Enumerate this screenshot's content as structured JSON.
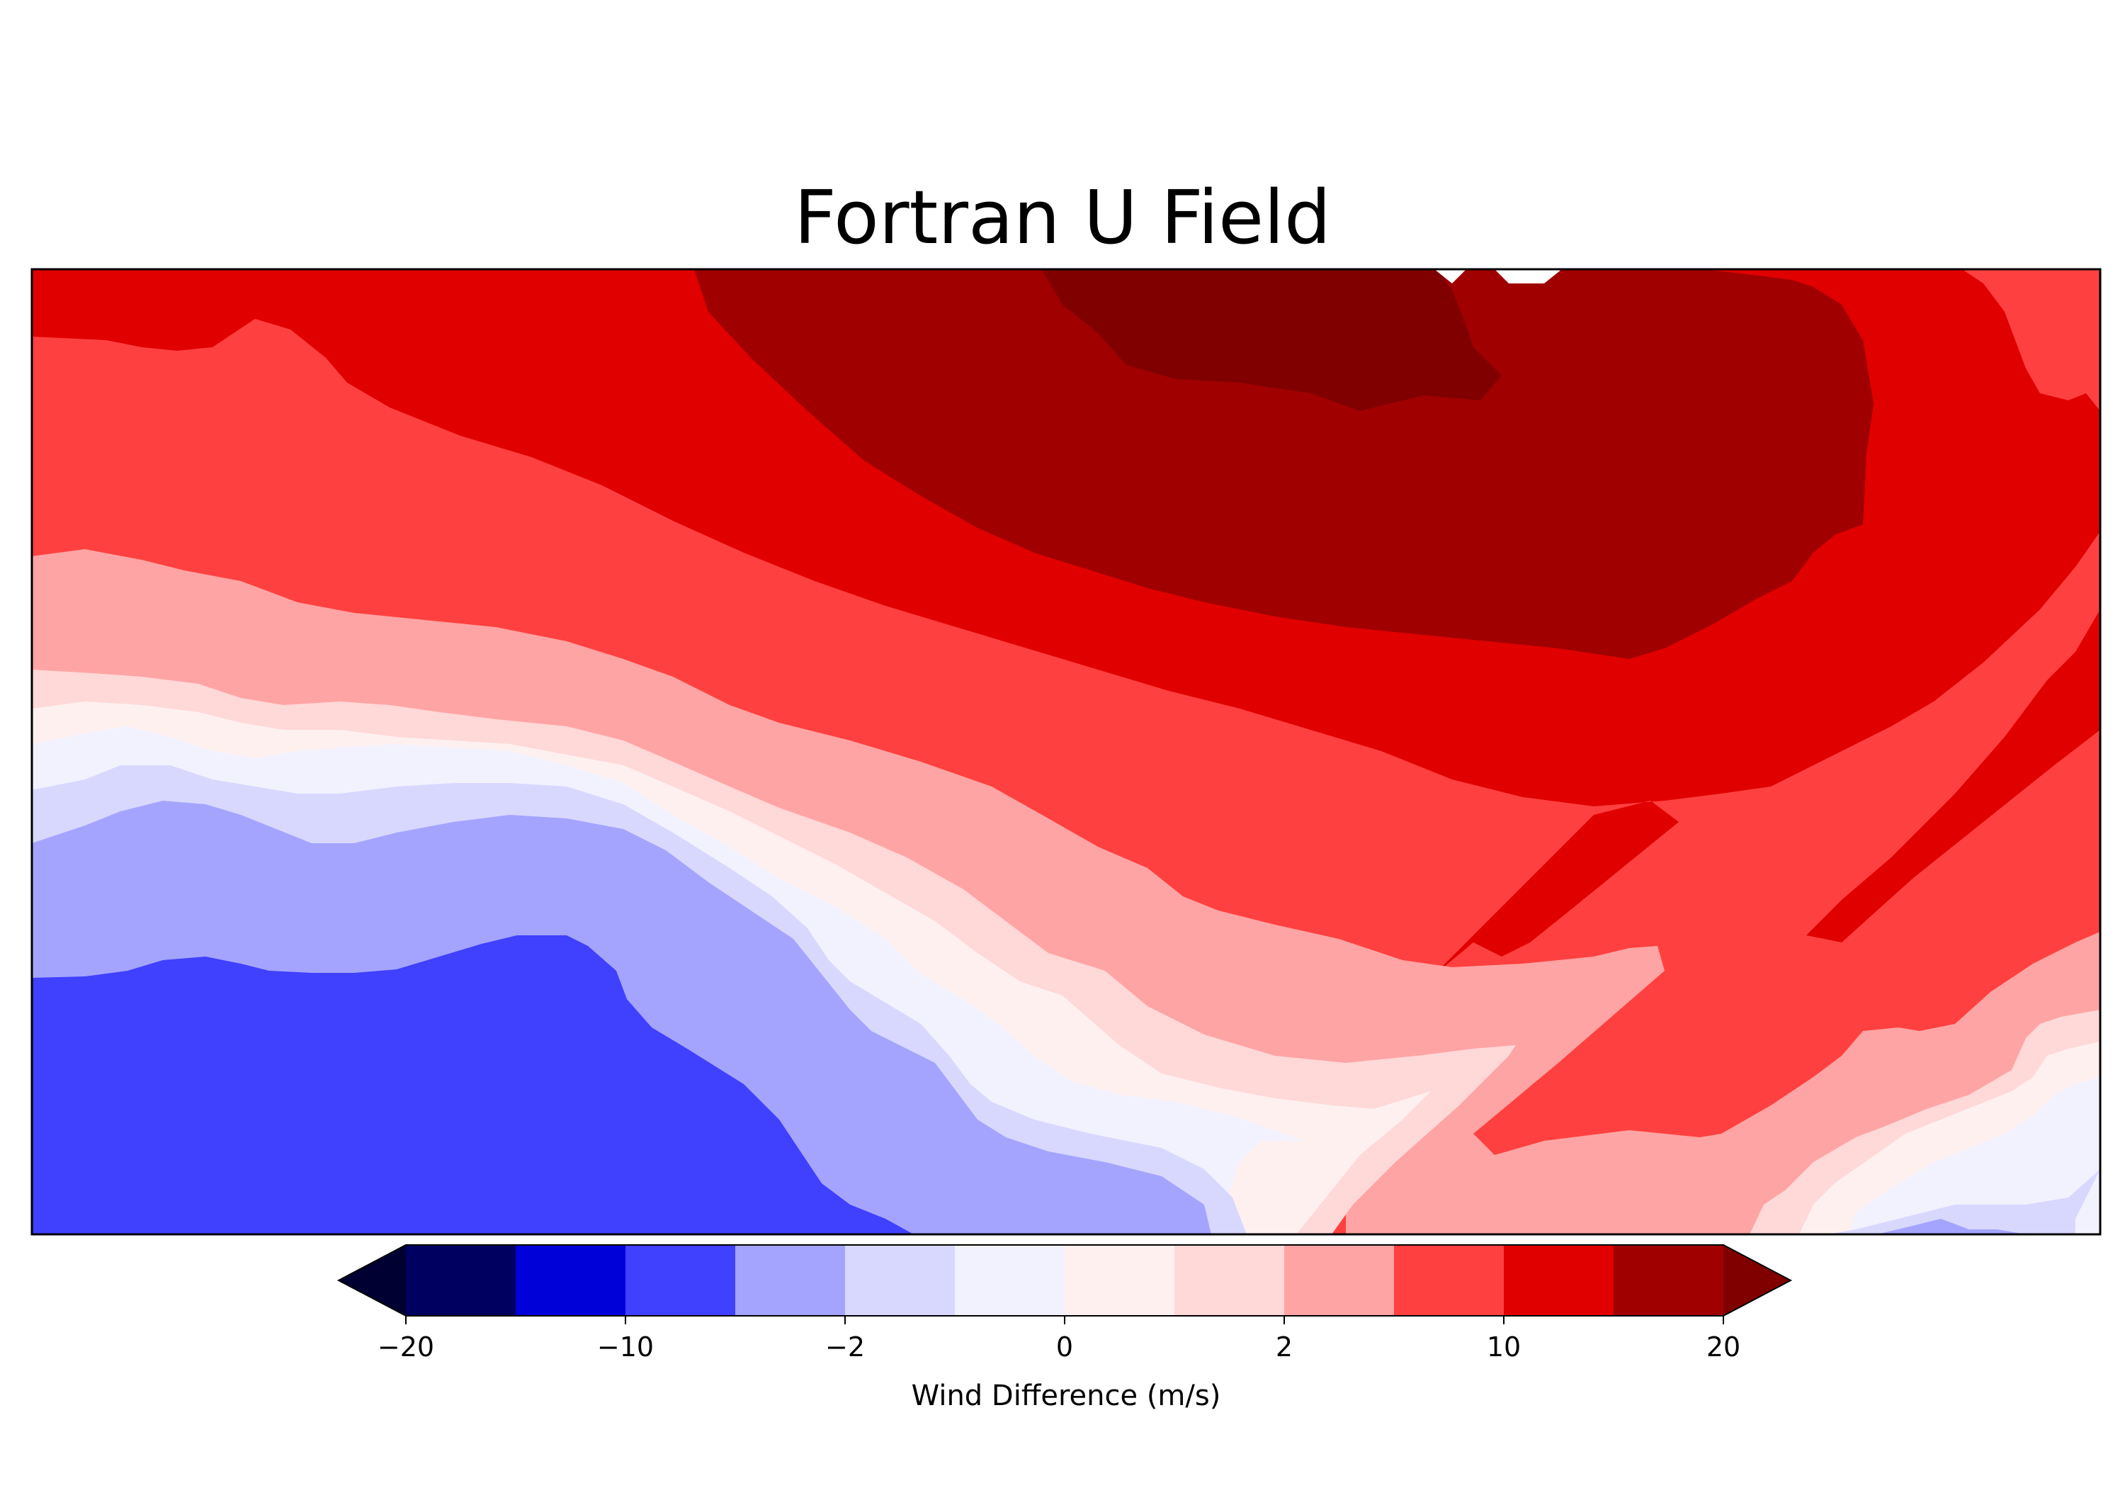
{
  "chart_data": {
    "type": "heatmap",
    "subtype": "filled-contour",
    "title": "Fortran U Field",
    "xlabel": "",
    "ylabel": "",
    "axis_ticks_shown": false,
    "colorbar": {
      "label": "Wind Difference (m/s)",
      "orientation": "horizontal",
      "placement": "bottom",
      "extend": "both",
      "levels": [
        -20,
        -15,
        -10,
        -5,
        -2,
        -1,
        0,
        1,
        2,
        5,
        10,
        15,
        20
      ],
      "tick_labels": [
        "−20",
        "−10",
        "−2",
        "0",
        "2",
        "10",
        "20"
      ],
      "tick_values": [
        -20,
        -10,
        -2,
        0,
        2,
        10,
        20
      ],
      "colors": [
        "#000060",
        "#0000d8",
        "#4040ff",
        "#a4a4ff",
        "#d8d8ff",
        "#f2f2ff",
        "#fff0f0",
        "#ffd8d8",
        "#ffa4a4",
        "#ff4040",
        "#e00000",
        "#a00000"
      ],
      "under_color": "#000033",
      "over_color": "#800000"
    },
    "regions_top_to_bottom_at_left_edge": [
      {
        "range": [
          10,
          15
        ]
      },
      {
        "range": [
          5,
          10
        ]
      },
      {
        "range": [
          2,
          5
        ]
      },
      {
        "range": [
          1,
          2
        ]
      },
      {
        "range": [
          0,
          1
        ]
      },
      {
        "range": [
          -1,
          0
        ]
      },
      {
        "range": [
          -2,
          -1
        ]
      },
      {
        "range": [
          -5,
          -2
        ]
      },
      {
        "range": [
          -10,
          -5
        ]
      }
    ],
    "extremes": {
      "max_region": {
        "range": [
          20,
          null
        ],
        "location": "top-center"
      },
      "min_region": {
        "range": [
          -10,
          -5
        ],
        "location": "bottom-left"
      }
    }
  }
}
